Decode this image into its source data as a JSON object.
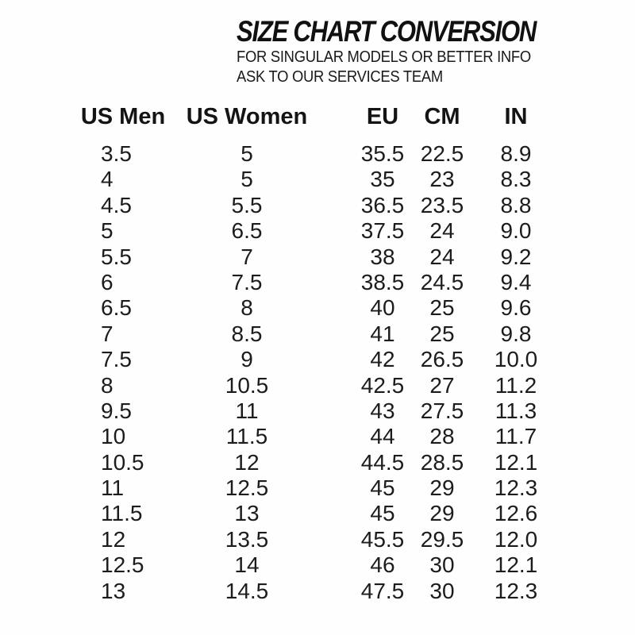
{
  "colors": {
    "background": "#fefefe",
    "text": "#1a1a1a"
  },
  "header": {
    "title": "SIZE CHART CONVERSION",
    "subtitle_line1": "FOR SINGULAR MODELS OR BETTER INFO",
    "subtitle_line2": "ASK TO OUR SERVICES TEAM"
  },
  "chart_data": {
    "type": "table",
    "title": "SIZE CHART CONVERSION",
    "subtitle": "FOR SINGULAR MODELS OR BETTER INFO ASK TO OUR SERVICES TEAM",
    "columns": [
      "US Men",
      "US Women",
      "EU",
      "CM",
      "IN"
    ],
    "rows": [
      [
        "3.5",
        "5",
        "35.5",
        "22.5",
        "8.9"
      ],
      [
        "4",
        "5",
        "35",
        "23",
        "8.3"
      ],
      [
        "4.5",
        "5.5",
        "36.5",
        "23.5",
        "8.8"
      ],
      [
        "5",
        "6.5",
        "37.5",
        "24",
        "9.0"
      ],
      [
        "5.5",
        "7",
        "38",
        "24",
        "9.2"
      ],
      [
        "6",
        "7.5",
        "38.5",
        "24.5",
        "9.4"
      ],
      [
        "6.5",
        "8",
        "40",
        "25",
        "9.6"
      ],
      [
        "7",
        "8.5",
        "41",
        "25",
        "9.8"
      ],
      [
        "7.5",
        "9",
        "42",
        "26.5",
        "10.0"
      ],
      [
        "8",
        "10.5",
        "42.5",
        "27",
        "11.2"
      ],
      [
        "9.5",
        "11",
        "43",
        "27.5",
        "11.3"
      ],
      [
        "10",
        "11.5",
        "44",
        "28",
        "11.7"
      ],
      [
        "10.5",
        "12",
        "44.5",
        "28.5",
        "12.1"
      ],
      [
        "11",
        "12.5",
        "45",
        "29",
        "12.3"
      ],
      [
        "11.5",
        "13",
        "45",
        "29",
        "12.6"
      ],
      [
        "12",
        "13.5",
        "45.5",
        "29.5",
        "12.0"
      ],
      [
        "12.5",
        "14",
        "46",
        "30",
        "12.1"
      ],
      [
        "13",
        "14.5",
        "47.5",
        "30",
        "12.3"
      ]
    ]
  }
}
